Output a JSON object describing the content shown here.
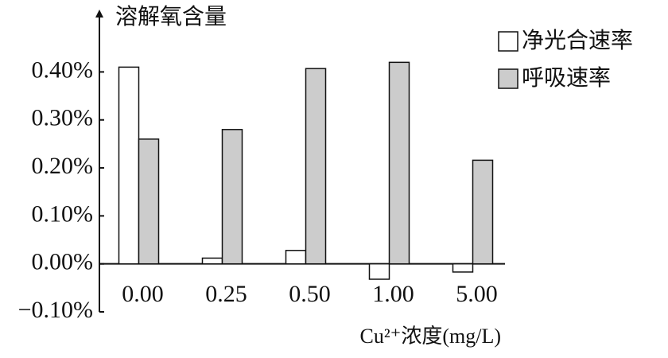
{
  "chart_data": {
    "type": "bar",
    "y_label": "溶解氧含量",
    "x_label": "Cu²⁺浓度(mg/L)",
    "categories": [
      "0.00",
      "0.25",
      "0.50",
      "1.00",
      "5.00"
    ],
    "series": [
      {
        "name": "净光合速率",
        "color": "#ffffff",
        "values": [
          0.41,
          0.012,
          0.028,
          -0.032,
          -0.017
        ]
      },
      {
        "name": "呼吸速率",
        "color": "#cccccc",
        "values": [
          0.26,
          0.28,
          0.407,
          0.42,
          0.216
        ]
      }
    ],
    "ylim": [
      -0.1,
      0.53
    ],
    "yticks": [
      {
        "value": -0.1,
        "label": "−0.10%"
      },
      {
        "value": 0.0,
        "label": "0.00%"
      },
      {
        "value": 0.1,
        "label": "0.10%"
      },
      {
        "value": 0.2,
        "label": "0.20%"
      },
      {
        "value": 0.3,
        "label": "0.30%"
      },
      {
        "value": 0.4,
        "label": "0.40%"
      }
    ],
    "legend": "top-right"
  }
}
